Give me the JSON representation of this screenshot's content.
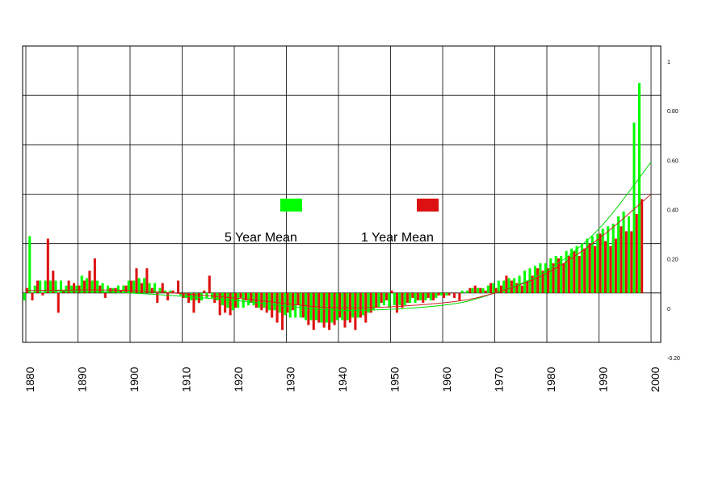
{
  "chart_data": {
    "type": "bar",
    "x": [
      1880,
      1881,
      1882,
      1883,
      1884,
      1885,
      1886,
      1887,
      1888,
      1889,
      1890,
      1891,
      1892,
      1893,
      1894,
      1895,
      1896,
      1897,
      1898,
      1899,
      1900,
      1901,
      1902,
      1903,
      1904,
      1905,
      1906,
      1907,
      1908,
      1909,
      1910,
      1911,
      1912,
      1913,
      1914,
      1915,
      1916,
      1917,
      1918,
      1919,
      1920,
      1921,
      1922,
      1923,
      1924,
      1925,
      1926,
      1927,
      1928,
      1929,
      1930,
      1931,
      1932,
      1933,
      1934,
      1935,
      1936,
      1937,
      1938,
      1939,
      1940,
      1941,
      1942,
      1943,
      1944,
      1945,
      1946,
      1947,
      1948,
      1949,
      1950,
      1951,
      1952,
      1953,
      1954,
      1955,
      1956,
      1957,
      1958,
      1959,
      1960,
      1961,
      1962,
      1963,
      1964,
      1965,
      1966,
      1967,
      1968,
      1969,
      1970,
      1971,
      1972,
      1973,
      1974,
      1975,
      1976,
      1977,
      1978,
      1979,
      1980,
      1981,
      1982,
      1983,
      1984,
      1985,
      1986,
      1987,
      1988,
      1989,
      1990,
      1991,
      1992,
      1993,
      1994,
      1995,
      1996,
      1997,
      1998
    ],
    "series": [
      {
        "name": "5 Year Mean",
        "color": "#00ff00",
        "trend_color": "#00dd00",
        "values": [
          -0.03,
          0.23,
          0.03,
          0.05,
          0.05,
          0.05,
          0.05,
          0.05,
          0.03,
          0.03,
          0.03,
          0.07,
          0.06,
          0.05,
          0.05,
          0.04,
          0.03,
          0.02,
          0.03,
          0.03,
          0.05,
          0.05,
          0.06,
          0.06,
          0.04,
          0.04,
          0.02,
          0.01,
          0.01,
          0,
          -0.01,
          -0.02,
          -0.03,
          -0.03,
          -0.03,
          -0.02,
          -0.02,
          -0.03,
          -0.05,
          -0.06,
          -0.07,
          -0.06,
          -0.06,
          -0.05,
          -0.05,
          -0.06,
          -0.06,
          -0.07,
          -0.07,
          -0.08,
          -0.09,
          -0.1,
          -0.1,
          -0.1,
          -0.11,
          -0.11,
          -0.11,
          -0.12,
          -0.12,
          -0.12,
          -0.11,
          -0.11,
          -0.11,
          -0.1,
          -0.1,
          -0.09,
          -0.08,
          -0.07,
          -0.06,
          -0.05,
          -0.06,
          -0.05,
          -0.05,
          -0.05,
          -0.04,
          -0.04,
          -0.03,
          -0.03,
          -0.03,
          -0.02,
          -0.01,
          -0.01,
          0,
          0,
          0.01,
          0.01,
          0.02,
          0.02,
          0.02,
          0.03,
          0.04,
          0.05,
          0.05,
          0.06,
          0.06,
          0.07,
          0.09,
          0.1,
          0.11,
          0.12,
          0.12,
          0.14,
          0.15,
          0.15,
          0.17,
          0.18,
          0.19,
          0.2,
          0.22,
          0.23,
          0.24,
          0.26,
          0.27,
          0.28,
          0.31,
          0.33,
          0.31,
          0.69,
          0.85
        ],
        "trend": [
          0.01,
          0,
          -0.03,
          -0.07,
          -0.05,
          0,
          0.09,
          0.26,
          0.53
        ]
      },
      {
        "name": "1 Year Mean",
        "color": "#dd1111",
        "trend_color": "#cc2222",
        "values": [
          0.02,
          -0.03,
          0.05,
          -0.01,
          0.22,
          0.09,
          -0.08,
          0.01,
          0.05,
          0.04,
          0.03,
          0.05,
          0.09,
          0.14,
          0.03,
          -0.02,
          0.02,
          0.02,
          0.01,
          0.03,
          0.05,
          0.1,
          0.04,
          0.1,
          0.02,
          -0.04,
          0.04,
          -0.03,
          0.01,
          0.05,
          -0.02,
          -0.04,
          -0.08,
          -0.04,
          0.01,
          0.07,
          -0.04,
          -0.09,
          -0.08,
          -0.09,
          -0.06,
          -0.02,
          -0.03,
          -0.04,
          -0.06,
          -0.07,
          -0.08,
          -0.1,
          -0.12,
          -0.15,
          -0.08,
          -0.07,
          -0.05,
          -0.1,
          -0.13,
          -0.15,
          -0.12,
          -0.14,
          -0.15,
          -0.13,
          -0.1,
          -0.14,
          -0.12,
          -0.15,
          -0.1,
          -0.12,
          -0.08,
          -0.06,
          -0.04,
          -0.03,
          0.01,
          -0.08,
          -0.06,
          -0.04,
          -0.02,
          -0.03,
          -0.04,
          -0.02,
          -0.03,
          -0.01,
          -0.02,
          -0.01,
          -0.02,
          -0.03,
          0,
          0.02,
          0.03,
          0.02,
          0.01,
          0.04,
          0.02,
          0.03,
          0.07,
          0.05,
          0.04,
          0.03,
          0.05,
          0.07,
          0.1,
          0.09,
          0.1,
          0.12,
          0.14,
          0.12,
          0.15,
          0.17,
          0.15,
          0.18,
          0.2,
          0.19,
          0.24,
          0.21,
          0.19,
          0.22,
          0.27,
          0.25,
          0.25,
          0.32,
          0.38
        ],
        "trend": [
          0.01,
          0.01,
          -0.02,
          -0.06,
          -0.04,
          0,
          0.08,
          0.22,
          0.4
        ]
      }
    ],
    "trend_x": [
      1880,
      1900,
      1920,
      1940,
      1960,
      1970,
      1980,
      1990,
      2000
    ],
    "xlim": [
      1880,
      2000
    ],
    "xticks": [
      1880,
      1890,
      1900,
      1910,
      1920,
      1930,
      1940,
      1950,
      1960,
      1970,
      1980,
      1990,
      2000
    ],
    "ylim": [
      -0.2,
      1
    ],
    "yticks": [
      {
        "value": -0.2,
        "label": "-0.20"
      },
      0,
      {
        "value": 0.2,
        "label": "0.20"
      },
      {
        "value": 0.4,
        "label": "0.40"
      },
      {
        "value": 0.6,
        "label": "0.60"
      },
      {
        "value": 0.8,
        "label": "0.80"
      },
      1
    ],
    "grid": true
  }
}
